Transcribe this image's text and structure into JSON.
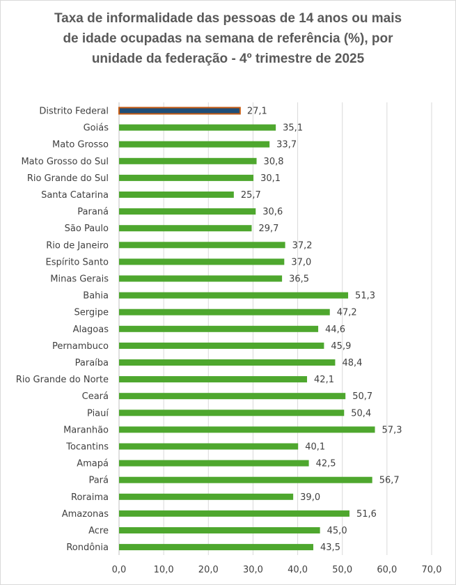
{
  "chart_data": {
    "type": "bar",
    "orientation": "horizontal",
    "title": "Taxa de informalidade das pessoas de 14 anos ou mais de idade ocupadas  na semana de referência (%), por unidade da federação - 4º trimestre de 2025",
    "title_lines": [
      "Taxa de informalidade das pessoas de 14 anos ou mais",
      "de idade ocupadas  na semana de referência (%), por",
      "unidade da federação - 4º trimestre de 2025"
    ],
    "xlabel": "",
    "ylabel": "",
    "xlim": [
      0,
      70
    ],
    "x_ticks": [
      0,
      10,
      20,
      30,
      40,
      50,
      60,
      70
    ],
    "x_tick_labels": [
      "0,0",
      "10,0",
      "20,0",
      "30,0",
      "40,0",
      "50,0",
      "60,0",
      "70,0"
    ],
    "grid": true,
    "legend": "none",
    "categories": [
      "Distrito Federal",
      "Goiás",
      "Mato Grosso",
      "Mato Grosso do Sul",
      "Rio Grande do Sul",
      "Santa Catarina",
      "Paraná",
      "São Paulo",
      "Rio de Janeiro",
      "Espírito Santo",
      "Minas Gerais",
      "Bahia",
      "Sergipe",
      "Alagoas",
      "Pernambuco",
      "Paraíba",
      "Rio Grande do Norte",
      "Ceará",
      "Piauí",
      "Maranhão",
      "Tocantins",
      "Amapá",
      "Pará",
      "Roraima",
      "Amazonas",
      "Acre",
      "Rondônia"
    ],
    "values": [
      27.1,
      35.1,
      33.7,
      30.8,
      30.1,
      25.7,
      30.6,
      29.7,
      37.2,
      37.0,
      36.5,
      51.3,
      47.2,
      44.6,
      45.9,
      48.4,
      42.1,
      50.7,
      50.4,
      57.3,
      40.1,
      42.5,
      56.7,
      39.0,
      51.6,
      45.0,
      43.5
    ],
    "value_labels": [
      "27,1",
      "35,1",
      "33,7",
      "30,8",
      "30,1",
      "25,7",
      "30,6",
      "29,7",
      "37,2",
      "37,0",
      "36,5",
      "51,3",
      "47,2",
      "44,6",
      "45,9",
      "48,4",
      "42,1",
      "50,7",
      "50,4",
      "57,3",
      "40,1",
      "42,5",
      "56,7",
      "39,0",
      "51,6",
      "45,0",
      "43,5"
    ],
    "highlight_index": 0,
    "colors": {
      "bar": "#4ea72e",
      "highlight_fill": "#1f4e79",
      "highlight_stroke": "#c55a11",
      "grid": "#d9d9d9",
      "text": "#404040",
      "title": "#595959"
    }
  }
}
